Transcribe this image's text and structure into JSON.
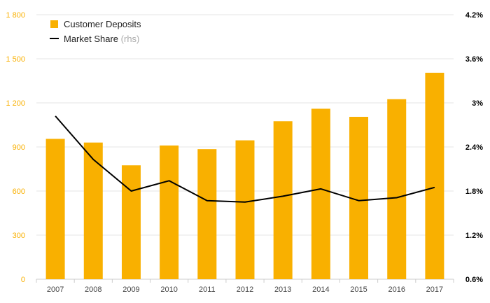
{
  "chart_data": {
    "type": "bar+line",
    "categories": [
      "2007",
      "2008",
      "2009",
      "2010",
      "2011",
      "2012",
      "2013",
      "2014",
      "2015",
      "2016",
      "2017"
    ],
    "series": [
      {
        "name": "Customer Deposits",
        "kind": "bar",
        "axis": "left",
        "color": "#F9B000",
        "values": [
          955,
          930,
          775,
          910,
          885,
          945,
          1075,
          1160,
          1105,
          1225,
          1405
        ]
      },
      {
        "name": "Market Share",
        "kind": "line",
        "axis": "right",
        "color": "#000000",
        "values": [
          2.82,
          2.23,
          1.8,
          1.94,
          1.67,
          1.65,
          1.73,
          1.83,
          1.67,
          1.71,
          1.85
        ]
      }
    ],
    "y_left": {
      "ylim": [
        0,
        1800
      ],
      "ticks": [
        0,
        300,
        600,
        900,
        1200,
        1500,
        1800
      ],
      "tick_labels": [
        "0",
        "300",
        "600",
        "900",
        "1 200",
        "1 500",
        "1 800"
      ],
      "color": "#F9B000"
    },
    "y_right": {
      "ylim": [
        0.6,
        4.2
      ],
      "ticks": [
        0.6,
        1.2,
        1.8,
        2.4,
        3.0,
        3.6,
        4.2
      ],
      "tick_labels": [
        "0.6%",
        "1.2%",
        "1.8%",
        "2.4%",
        "3%",
        "3.6%",
        "4.2%"
      ],
      "color": "#000000"
    },
    "legend": {
      "placement": "top-left",
      "items": [
        {
          "label": "Customer Deposits",
          "suffix": "",
          "swatch": "bar"
        },
        {
          "label": "Market Share",
          "suffix": "(rhs)",
          "swatch": "line"
        }
      ]
    },
    "grid": true,
    "grid_color": "#E5E5E5",
    "x_tick_color": "#444444",
    "legend_suffix_color": "#AAAAAA"
  }
}
